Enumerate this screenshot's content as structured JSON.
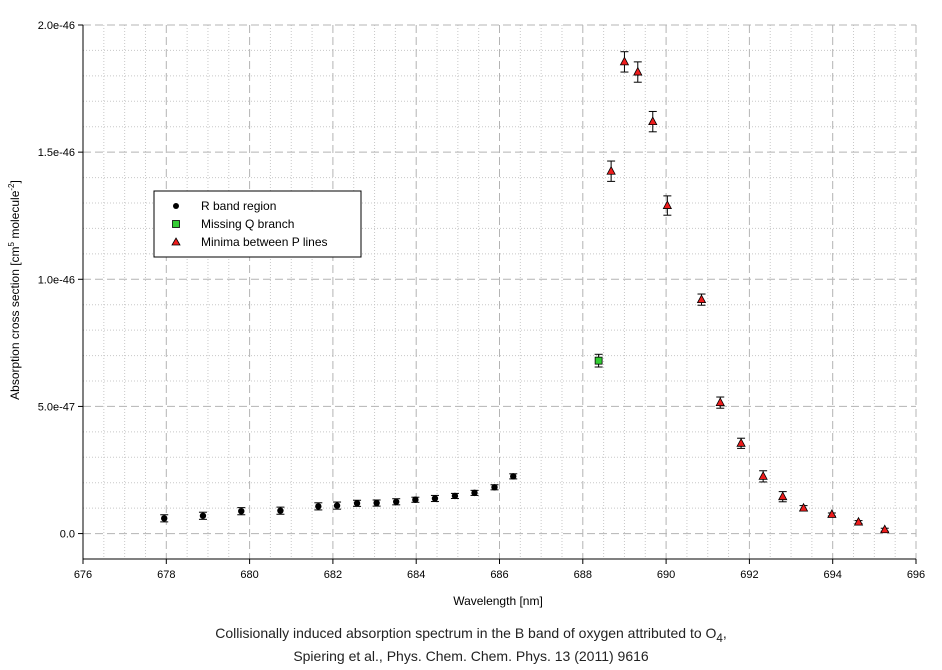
{
  "chart_data": {
    "type": "scatter",
    "xlabel": "Wavelength [nm]",
    "ylabel_parts": {
      "prefix": "Absorption cross section [cm",
      "sup1": "5",
      "middle": " molecule",
      "sup2": "-2",
      "suffix": "]"
    },
    "xlim": [
      676,
      696
    ],
    "ylim": [
      -1e-47,
      2e-46
    ],
    "x_ticks": [
      676,
      678,
      680,
      682,
      684,
      686,
      688,
      690,
      692,
      694,
      696
    ],
    "x_tick_labels": [
      "676",
      "678",
      "680",
      "682",
      "684",
      "686",
      "688",
      "690",
      "692",
      "694",
      "696"
    ],
    "y_ticks": [
      0,
      5e-47,
      1e-46,
      1.5e-46,
      2e-46
    ],
    "y_tick_labels": [
      "0.0",
      "5.0e-47",
      "1.0e-46",
      "1.5e-46",
      "2.0e-46"
    ],
    "grid": true,
    "legend_position": "upper-left",
    "series": [
      {
        "name": "R band region",
        "marker": "circle",
        "color": "#000000",
        "points": [
          {
            "x": 677.95,
            "y": 6e-48,
            "err": 1.4e-48
          },
          {
            "x": 678.88,
            "y": 7e-48,
            "err": 1.4e-48
          },
          {
            "x": 679.8,
            "y": 8.8e-48,
            "err": 1.4e-48
          },
          {
            "x": 680.74,
            "y": 9e-48,
            "err": 1.4e-48
          },
          {
            "x": 681.65,
            "y": 1.07e-47,
            "err": 1.4e-48
          },
          {
            "x": 682.1,
            "y": 1.1e-47,
            "err": 1.4e-48
          },
          {
            "x": 682.58,
            "y": 1.19e-47,
            "err": 1.2e-48
          },
          {
            "x": 683.05,
            "y": 1.2e-47,
            "err": 1.2e-48
          },
          {
            "x": 683.52,
            "y": 1.25e-47,
            "err": 1.2e-48
          },
          {
            "x": 683.98,
            "y": 1.33e-47,
            "err": 1e-48
          },
          {
            "x": 684.45,
            "y": 1.38e-47,
            "err": 1.2e-48
          },
          {
            "x": 684.93,
            "y": 1.48e-47,
            "err": 1e-48
          },
          {
            "x": 685.4,
            "y": 1.6e-47,
            "err": 1e-48
          },
          {
            "x": 685.88,
            "y": 1.82e-47,
            "err": 1e-48
          },
          {
            "x": 686.33,
            "y": 2.25e-47,
            "err": 1e-48
          }
        ]
      },
      {
        "name": "Missing Q branch",
        "marker": "square",
        "color": "#33cc33",
        "points": [
          {
            "x": 688.38,
            "y": 6.8e-47,
            "err": 2.5e-48
          }
        ]
      },
      {
        "name": "Minima between P lines",
        "marker": "triangle",
        "color": "#ee1c1c",
        "points": [
          {
            "x": 688.68,
            "y": 1.425e-46,
            "err": 4e-48
          },
          {
            "x": 689.0,
            "y": 1.855e-46,
            "err": 4e-48
          },
          {
            "x": 689.32,
            "y": 1.815e-46,
            "err": 4e-48
          },
          {
            "x": 689.68,
            "y": 1.62e-46,
            "err": 4e-48
          },
          {
            "x": 690.03,
            "y": 1.29e-46,
            "err": 3.8e-48
          },
          {
            "x": 690.85,
            "y": 9.2e-47,
            "err": 2.2e-48
          },
          {
            "x": 691.3,
            "y": 5.15e-47,
            "err": 2.2e-48
          },
          {
            "x": 691.8,
            "y": 3.55e-47,
            "err": 2e-48
          },
          {
            "x": 692.33,
            "y": 2.25e-47,
            "err": 2.2e-48
          },
          {
            "x": 692.8,
            "y": 1.45e-47,
            "err": 2e-48
          },
          {
            "x": 693.3,
            "y": 1e-47,
            "err": 1e-48
          },
          {
            "x": 693.98,
            "y": 7.5e-48,
            "err": 6e-49
          },
          {
            "x": 694.62,
            "y": 4.5e-48,
            "err": 6e-49
          },
          {
            "x": 695.25,
            "y": 1.5e-48,
            "err": 6e-49
          }
        ]
      }
    ]
  },
  "caption": {
    "line1_prefix": "Collisionally induced absorption spectrum in the B band of oxygen attributed to O",
    "line1_sub": "4",
    "line1_suffix": ",",
    "line2": "Spiering et al., Phys. Chem. Chem. Phys. 13 (2011) 9616"
  }
}
